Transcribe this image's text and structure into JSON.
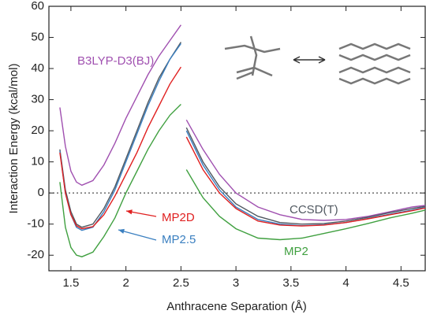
{
  "chart_data": {
    "type": "line",
    "xlabel": "Anthracene Separation (Å)",
    "ylabel": "Interaction Energy (kcal/mol)",
    "xlim": [
      1.3,
      4.72
    ],
    "ylim": [
      -25,
      60
    ],
    "xticks": [
      1.5,
      2.0,
      2.5,
      3.0,
      3.5,
      4.0,
      4.5
    ],
    "yticks": [
      -20,
      -10,
      0,
      10,
      20,
      30,
      40,
      50,
      60
    ],
    "x": [
      1.4,
      1.45,
      1.5,
      1.55,
      1.6,
      1.7,
      1.8,
      1.9,
      2.0,
      2.1,
      2.2,
      2.3,
      2.4,
      2.5,
      2.52,
      2.55,
      2.7,
      2.85,
      3.0,
      3.2,
      3.4,
      3.6,
      3.8,
      4.0,
      4.2,
      4.4,
      4.6,
      4.72
    ],
    "series": [
      {
        "name": "B3LYP-D3(BJ)",
        "color": "#a050b0",
        "values": [
          27.5,
          15,
          7,
          3.5,
          2.5,
          4,
          9,
          16,
          24,
          31,
          38,
          44,
          49,
          54,
          null,
          23.5,
          14,
          6,
          0,
          -4.5,
          -7,
          -8.5,
          -8.8,
          -8.5,
          -7.5,
          -6,
          -4.5,
          -4
        ]
      },
      {
        "name": "CCSD(T)",
        "color": "#505860",
        "values": [
          14,
          1,
          -6,
          -10,
          -11,
          -10,
          -5,
          2,
          11,
          20,
          29,
          37,
          43,
          48.5,
          null,
          21,
          10,
          2,
          -3.5,
          -7.5,
          -9.5,
          -10,
          -9.8,
          -9,
          -7.8,
          -6.3,
          -5,
          -4.3
        ]
      },
      {
        "name": "MP2.5",
        "color": "#3a7fc0",
        "values": [
          13.5,
          0,
          -7,
          -11,
          -12,
          -11,
          -6,
          1,
          10,
          19,
          28,
          36,
          43,
          48,
          null,
          20,
          9,
          1,
          -4.5,
          -8.5,
          -10,
          -10.5,
          -10.2,
          -9.5,
          -8.2,
          -6.8,
          -5.5,
          -4.6
        ]
      },
      {
        "name": "MP2D",
        "color": "#e02020",
        "values": [
          13,
          0,
          -7,
          -10.5,
          -11.5,
          -10.8,
          -7,
          -1,
          6,
          13,
          21,
          28,
          35,
          40.5,
          null,
          18,
          7.5,
          0,
          -5,
          -9,
          -10.3,
          -10.6,
          -10.3,
          -9.5,
          -8.3,
          -7,
          -5.7,
          -4.8
        ]
      },
      {
        "name": "MP2",
        "color": "#40a040",
        "values": [
          3.5,
          -11,
          -17.5,
          -20,
          -20.5,
          -19,
          -14,
          -8,
          0,
          7,
          14,
          20,
          25,
          28.5,
          null,
          7.5,
          -1.5,
          -7.5,
          -11.5,
          -14.5,
          -15,
          -14.5,
          -13,
          -11.5,
          -9.8,
          -8,
          -6.5,
          -5.5
        ]
      }
    ]
  }
}
